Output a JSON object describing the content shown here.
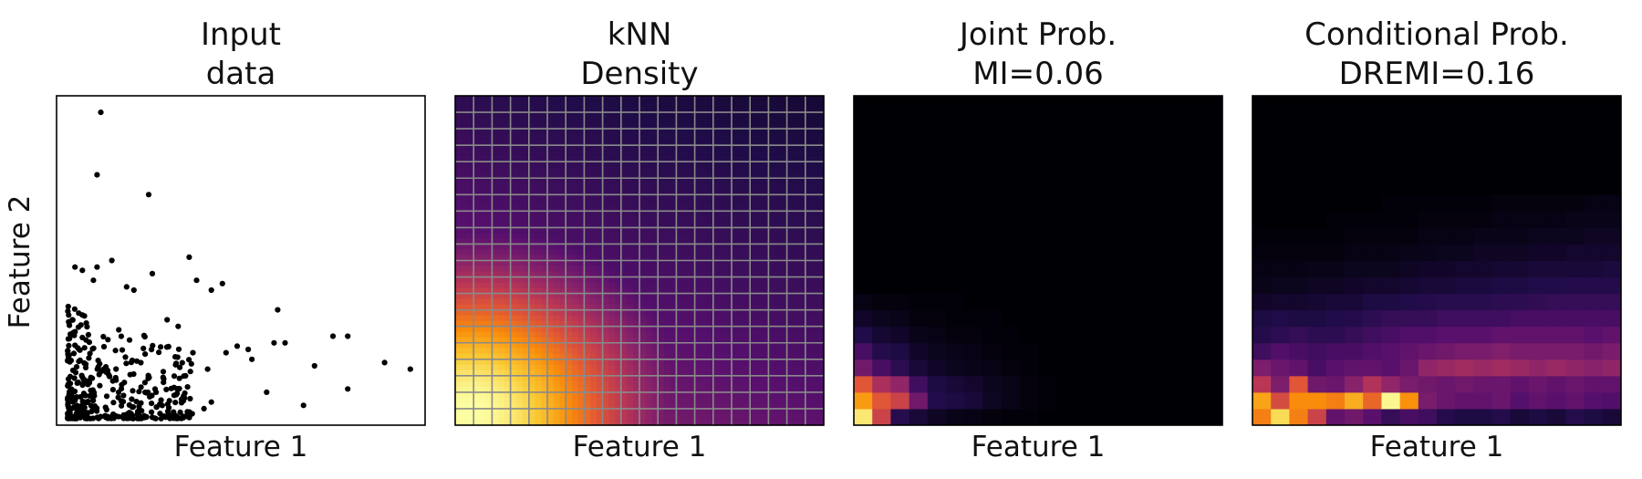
{
  "figure": {
    "ylabel_shared": "Feature 2"
  },
  "colors": {
    "frame": "#000000",
    "points": "#000000",
    "grid": "#8a8a8a",
    "colormap": "inferno"
  },
  "chart_data": [
    {
      "type": "scatter",
      "title_lines": [
        "Input",
        "data"
      ],
      "xlabel": "Feature 1",
      "ylabel": "Feature 2",
      "xlim": [
        0,
        1
      ],
      "ylim": [
        0,
        1
      ],
      "grid": false,
      "note": "axes have no tick labels; positions are approximate relative values",
      "points": [
        [
          0.12,
          0.95
        ],
        [
          0.11,
          0.76
        ],
        [
          0.25,
          0.7
        ],
        [
          0.36,
          0.51
        ],
        [
          0.05,
          0.48
        ],
        [
          0.07,
          0.47
        ],
        [
          0.11,
          0.48
        ],
        [
          0.15,
          0.5
        ],
        [
          0.1,
          0.44
        ],
        [
          0.19,
          0.42
        ],
        [
          0.21,
          0.41
        ],
        [
          0.26,
          0.46
        ],
        [
          0.38,
          0.44
        ],
        [
          0.42,
          0.41
        ],
        [
          0.45,
          0.43
        ],
        [
          0.6,
          0.35
        ],
        [
          0.59,
          0.25
        ],
        [
          0.62,
          0.25
        ],
        [
          0.75,
          0.27
        ],
        [
          0.79,
          0.27
        ],
        [
          0.49,
          0.24
        ],
        [
          0.52,
          0.23
        ],
        [
          0.46,
          0.22
        ],
        [
          0.53,
          0.2
        ],
        [
          0.37,
          0.22
        ],
        [
          0.33,
          0.3
        ],
        [
          0.3,
          0.32
        ],
        [
          0.41,
          0.17
        ],
        [
          0.35,
          0.15
        ],
        [
          0.7,
          0.18
        ],
        [
          0.89,
          0.19
        ],
        [
          0.96,
          0.17
        ],
        [
          0.57,
          0.1
        ],
        [
          0.79,
          0.11
        ],
        [
          0.67,
          0.06
        ],
        [
          0.29,
          0.13
        ],
        [
          0.42,
          0.07
        ],
        [
          0.27,
          0.1
        ],
        [
          0.4,
          0.05
        ]
      ]
    },
    {
      "type": "heatmap",
      "title_lines": [
        "kNN",
        "Density"
      ],
      "xlabel": "Feature 1",
      "grid": true,
      "grid_divisions": 20,
      "colormap": "inferno",
      "density_model": {
        "peak_x": 0.04,
        "peak_y": 0.04,
        "sigma_x": 0.28,
        "sigma_y": 0.26,
        "tail_x": 0.7,
        "tail_y": 0.55,
        "floor": 0.06
      }
    },
    {
      "type": "heatmap",
      "title_lines": [
        "Joint Prob.",
        "MI=0.06"
      ],
      "xlabel": "Feature 1",
      "grid": false,
      "colormap": "inferno",
      "annotation": "MI=0.06",
      "bins": 20,
      "values_bottom_rows": [
        [
          0.95,
          0.55,
          0.15,
          0.1,
          0.06,
          0.04,
          0.03,
          0.02,
          0.01,
          0.01,
          0.0,
          0.0,
          0.0,
          0.0,
          0.0,
          0.0,
          0.0,
          0.0,
          0.0,
          0.0
        ],
        [
          0.78,
          0.62,
          0.55,
          0.32,
          0.14,
          0.12,
          0.1,
          0.06,
          0.04,
          0.02,
          0.01,
          0.0,
          0.0,
          0.0,
          0.0,
          0.0,
          0.0,
          0.0,
          0.0,
          0.0
        ],
        [
          0.62,
          0.46,
          0.4,
          0.2,
          0.12,
          0.1,
          0.08,
          0.05,
          0.04,
          0.02,
          0.01,
          0.0,
          0.0,
          0.0,
          0.0,
          0.0,
          0.0,
          0.0,
          0.0,
          0.0
        ],
        [
          0.32,
          0.22,
          0.16,
          0.1,
          0.07,
          0.05,
          0.04,
          0.03,
          0.02,
          0.01,
          0.0,
          0.0,
          0.0,
          0.0,
          0.0,
          0.0,
          0.0,
          0.0,
          0.0,
          0.0
        ],
        [
          0.22,
          0.14,
          0.12,
          0.07,
          0.05,
          0.04,
          0.03,
          0.02,
          0.01,
          0.01,
          0.0,
          0.0,
          0.0,
          0.0,
          0.0,
          0.0,
          0.0,
          0.0,
          0.0,
          0.0
        ],
        [
          0.13,
          0.09,
          0.07,
          0.04,
          0.03,
          0.02,
          0.02,
          0.01,
          0.01,
          0.0,
          0.0,
          0.0,
          0.0,
          0.0,
          0.0,
          0.0,
          0.0,
          0.0,
          0.0,
          0.0
        ],
        [
          0.07,
          0.05,
          0.04,
          0.02,
          0.02,
          0.01,
          0.01,
          0.01,
          0.0,
          0.0,
          0.0,
          0.0,
          0.0,
          0.0,
          0.0,
          0.0,
          0.0,
          0.0,
          0.0,
          0.0
        ],
        [
          0.03,
          0.02,
          0.02,
          0.01,
          0.01,
          0.01,
          0.0,
          0.0,
          0.0,
          0.0,
          0.0,
          0.0,
          0.0,
          0.0,
          0.0,
          0.0,
          0.0,
          0.0,
          0.0,
          0.0
        ]
      ]
    },
    {
      "type": "heatmap",
      "title_lines": [
        "Conditional Prob.",
        "DREMI=0.16"
      ],
      "xlabel": "Feature 1",
      "grid": false,
      "colormap": "inferno",
      "annotation": "DREMI=0.16",
      "bins": 20,
      "values_bottom_rows": [
        [
          0.72,
          0.92,
          0.72,
          0.55,
          0.28,
          0.32,
          0.26,
          0.18,
          0.22,
          0.2,
          0.14,
          0.12,
          0.12,
          0.14,
          0.1,
          0.12,
          0.1,
          0.14,
          0.12,
          0.1
        ],
        [
          0.8,
          0.58,
          0.75,
          0.75,
          0.72,
          0.82,
          0.66,
          0.98,
          0.76,
          0.34,
          0.3,
          0.28,
          0.28,
          0.3,
          0.25,
          0.28,
          0.26,
          0.28,
          0.25,
          0.24
        ],
        [
          0.5,
          0.35,
          0.62,
          0.32,
          0.3,
          0.38,
          0.48,
          0.4,
          0.34,
          0.32,
          0.3,
          0.32,
          0.3,
          0.3,
          0.28,
          0.3,
          0.28,
          0.3,
          0.28,
          0.28
        ],
        [
          0.35,
          0.3,
          0.28,
          0.22,
          0.26,
          0.28,
          0.28,
          0.26,
          0.3,
          0.4,
          0.42,
          0.44,
          0.42,
          0.44,
          0.42,
          0.4,
          0.42,
          0.4,
          0.38,
          0.4
        ],
        [
          0.2,
          0.24,
          0.22,
          0.2,
          0.22,
          0.22,
          0.24,
          0.26,
          0.28,
          0.3,
          0.32,
          0.34,
          0.34,
          0.36,
          0.34,
          0.34,
          0.34,
          0.34,
          0.32,
          0.34
        ],
        [
          0.14,
          0.16,
          0.18,
          0.16,
          0.16,
          0.18,
          0.2,
          0.22,
          0.24,
          0.24,
          0.26,
          0.26,
          0.26,
          0.28,
          0.28,
          0.28,
          0.28,
          0.28,
          0.26,
          0.28
        ],
        [
          0.12,
          0.13,
          0.12,
          0.12,
          0.13,
          0.14,
          0.16,
          0.18,
          0.18,
          0.18,
          0.2,
          0.2,
          0.2,
          0.2,
          0.22,
          0.22,
          0.22,
          0.22,
          0.22,
          0.22
        ],
        [
          0.07,
          0.08,
          0.08,
          0.09,
          0.1,
          0.1,
          0.12,
          0.12,
          0.13,
          0.14,
          0.15,
          0.15,
          0.15,
          0.16,
          0.16,
          0.17,
          0.18,
          0.18,
          0.18,
          0.18
        ],
        [
          0.04,
          0.05,
          0.05,
          0.06,
          0.06,
          0.07,
          0.08,
          0.08,
          0.09,
          0.1,
          0.1,
          0.11,
          0.11,
          0.12,
          0.12,
          0.13,
          0.13,
          0.14,
          0.14,
          0.14
        ],
        [
          0.03,
          0.03,
          0.03,
          0.04,
          0.04,
          0.05,
          0.05,
          0.05,
          0.06,
          0.07,
          0.07,
          0.08,
          0.08,
          0.09,
          0.09,
          0.1,
          0.1,
          0.1,
          0.1,
          0.11
        ],
        [
          0.02,
          0.02,
          0.02,
          0.02,
          0.02,
          0.03,
          0.03,
          0.03,
          0.04,
          0.04,
          0.05,
          0.05,
          0.06,
          0.06,
          0.06,
          0.07,
          0.07,
          0.08,
          0.08,
          0.08
        ],
        [
          0.01,
          0.01,
          0.01,
          0.01,
          0.01,
          0.02,
          0.02,
          0.02,
          0.02,
          0.03,
          0.03,
          0.03,
          0.04,
          0.04,
          0.04,
          0.05,
          0.05,
          0.05,
          0.06,
          0.06
        ],
        [
          0.0,
          0.0,
          0.0,
          0.0,
          0.01,
          0.01,
          0.01,
          0.01,
          0.01,
          0.02,
          0.02,
          0.02,
          0.02,
          0.03,
          0.03,
          0.03,
          0.03,
          0.04,
          0.04,
          0.04
        ],
        [
          0.0,
          0.0,
          0.0,
          0.0,
          0.0,
          0.0,
          0.0,
          0.01,
          0.01,
          0.01,
          0.01,
          0.01,
          0.01,
          0.02,
          0.02,
          0.02,
          0.02,
          0.02,
          0.03,
          0.03
        ]
      ]
    }
  ]
}
